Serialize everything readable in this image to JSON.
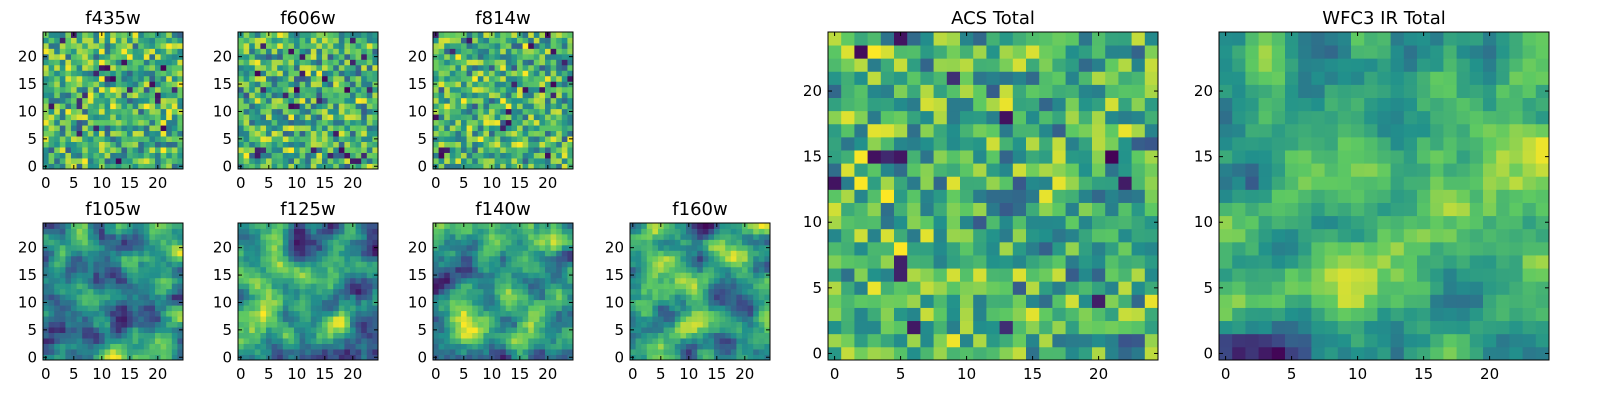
{
  "chart_data": [
    {
      "type": "heatmap",
      "title": "f435w",
      "size": 25,
      "xticks": [
        0,
        5,
        10,
        15,
        20
      ],
      "yticks": [
        0,
        5,
        10,
        15,
        20
      ],
      "xlim": [
        -0.5,
        24.5
      ],
      "ylim": [
        -0.5,
        24.5
      ],
      "colormap": "viridis",
      "pattern": "noise",
      "seed": 11
    },
    {
      "type": "heatmap",
      "title": "f606w",
      "size": 25,
      "xticks": [
        0,
        5,
        10,
        15,
        20
      ],
      "yticks": [
        0,
        5,
        10,
        15,
        20
      ],
      "xlim": [
        -0.5,
        24.5
      ],
      "ylim": [
        -0.5,
        24.5
      ],
      "colormap": "viridis",
      "pattern": "noise",
      "seed": 23
    },
    {
      "type": "heatmap",
      "title": "f814w",
      "size": 25,
      "xticks": [
        0,
        5,
        10,
        15,
        20
      ],
      "yticks": [
        0,
        5,
        10,
        15,
        20
      ],
      "xlim": [
        -0.5,
        24.5
      ],
      "ylim": [
        -0.5,
        24.5
      ],
      "colormap": "viridis",
      "pattern": "noise",
      "seed": 37
    },
    {
      "type": "heatmap",
      "title": "f105w",
      "size": 25,
      "xticks": [
        0,
        5,
        10,
        15,
        20
      ],
      "yticks": [
        0,
        5,
        10,
        15,
        20
      ],
      "xlim": [
        -0.5,
        24.5
      ],
      "ylim": [
        -0.5,
        24.5
      ],
      "colormap": "viridis",
      "pattern": "smooth",
      "seed": 41
    },
    {
      "type": "heatmap",
      "title": "f125w",
      "size": 25,
      "xticks": [
        0,
        5,
        10,
        15,
        20
      ],
      "yticks": [
        0,
        5,
        10,
        15,
        20
      ],
      "xlim": [
        -0.5,
        24.5
      ],
      "ylim": [
        -0.5,
        24.5
      ],
      "colormap": "viridis",
      "pattern": "smooth",
      "seed": 53
    },
    {
      "type": "heatmap",
      "title": "f140w",
      "size": 25,
      "xticks": [
        0,
        5,
        10,
        15,
        20
      ],
      "yticks": [
        0,
        5,
        10,
        15,
        20
      ],
      "xlim": [
        -0.5,
        24.5
      ],
      "ylim": [
        -0.5,
        24.5
      ],
      "colormap": "viridis",
      "pattern": "smooth",
      "seed": 67
    },
    {
      "type": "heatmap",
      "title": "f160w",
      "size": 25,
      "xticks": [
        0,
        5,
        10,
        15,
        20
      ],
      "yticks": [
        0,
        5,
        10,
        15,
        20
      ],
      "xlim": [
        -0.5,
        24.5
      ],
      "ylim": [
        -0.5,
        24.5
      ],
      "colormap": "viridis",
      "pattern": "smooth",
      "seed": 71
    },
    {
      "type": "heatmap",
      "title": "ACS Total",
      "size": 25,
      "xticks": [
        0,
        5,
        10,
        15,
        20
      ],
      "yticks": [
        0,
        5,
        10,
        15,
        20
      ],
      "xlim": [
        -0.5,
        24.5
      ],
      "ylim": [
        -0.5,
        24.5
      ],
      "colormap": "viridis",
      "pattern": "noise",
      "seed": 83
    },
    {
      "type": "heatmap",
      "title": "WFC3 IR Total",
      "size": 25,
      "xticks": [
        0,
        5,
        10,
        15,
        20
      ],
      "yticks": [
        0,
        5,
        10,
        15,
        20
      ],
      "xlim": [
        -0.5,
        24.5
      ],
      "ylim": [
        -0.5,
        24.5
      ],
      "colormap": "viridis",
      "pattern": "smooth",
      "seed": 97
    }
  ],
  "colors": {
    "viridis_stops": [
      "#440154",
      "#3b528b",
      "#21918c",
      "#5ec962",
      "#fde725"
    ]
  }
}
